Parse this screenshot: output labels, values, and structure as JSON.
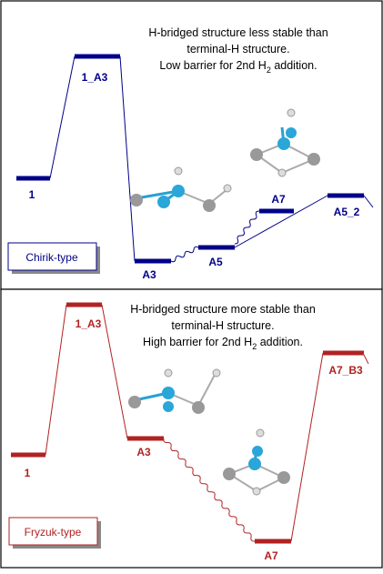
{
  "top_panel": {
    "note": {
      "line1": "H-bridged structure less stable than",
      "line2": "terminal-H structure.",
      "line3": "Low barrier for 2nd H",
      "line3_sub": "2",
      "line3_end": " addition."
    },
    "levels": {
      "l1": "1",
      "l1_A3": "1_A3",
      "A3": "A3",
      "A5": "A5",
      "A7": "A7",
      "A5_2": "A5_2"
    },
    "type_label": "Chirik-type"
  },
  "bottom_panel": {
    "note": {
      "line1": "H-bridged structure more stable than",
      "line2": "terminal-H structure.",
      "line3": "High barrier for 2nd H",
      "line3_sub": "2",
      "line3_end": " addition."
    },
    "levels": {
      "l1": "1",
      "l1_A3": "1_A3",
      "A3": "A3",
      "A7": "A7",
      "A7_B3": "A7_B3"
    },
    "type_label": "Fryzuk-type"
  }
}
